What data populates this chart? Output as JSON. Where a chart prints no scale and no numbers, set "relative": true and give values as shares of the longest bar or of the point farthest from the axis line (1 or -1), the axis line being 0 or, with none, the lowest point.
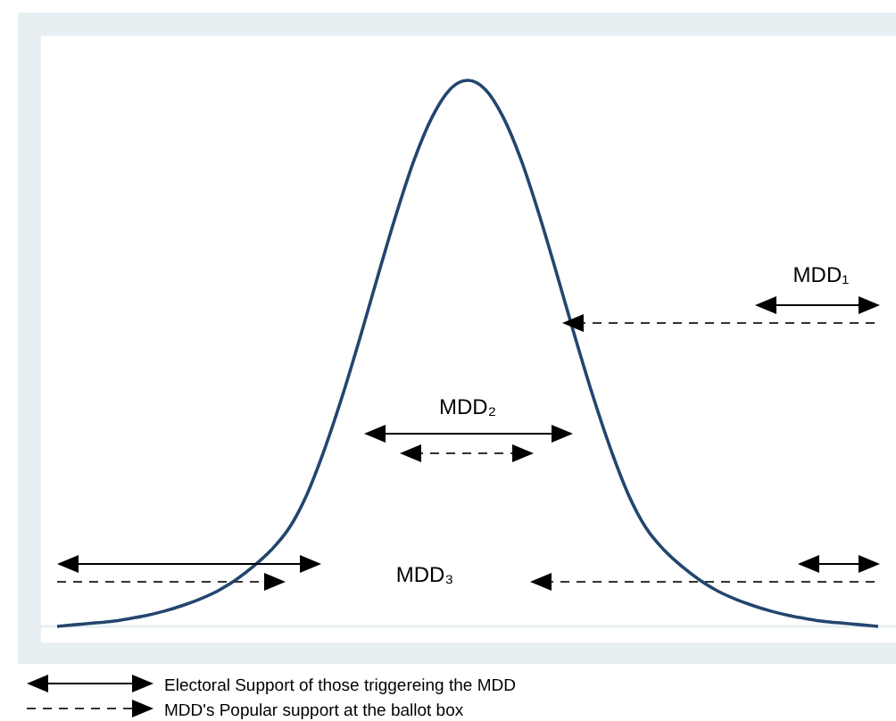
{
  "chart_data": {
    "type": "line",
    "relative": true,
    "categories": [
      null,
      null,
      null,
      null,
      null,
      null,
      null,
      null,
      null,
      null,
      null,
      null,
      null,
      null,
      null,
      null,
      null,
      null,
      null,
      null,
      null,
      null,
      null,
      null,
      null,
      null,
      null,
      null,
      null,
      null,
      null,
      null,
      null,
      null,
      null,
      null,
      null,
      null,
      null,
      null,
      null,
      null,
      null,
      null,
      null,
      null,
      null
    ],
    "series": [
      {
        "color": "#23466e",
        "values": [
          0,
          0.003,
          0.006,
          0.009,
          0.014,
          0.02,
          0.028,
          0.038,
          0.05,
          0.065,
          0.085,
          0.11,
          0.14,
          0.18,
          0.242,
          0.326,
          0.424,
          0.532,
          0.645,
          0.755,
          0.854,
          0.932,
          0.983,
          1,
          0.983,
          0.932,
          0.854,
          0.755,
          0.645,
          0.532,
          0.424,
          0.326,
          0.242,
          0.18,
          0.14,
          0.11,
          0.085,
          0.065,
          0.05,
          0.038,
          0.028,
          0.02,
          0.014,
          0.009,
          0.006,
          0.003,
          0
        ]
      }
    ],
    "marker": "none",
    "line_style": "solid",
    "annotations": [
      "MDD₁",
      "MDD₂",
      "MDD₃",
      "Electoral Support of those triggereing the MDD",
      "MDD's Popular support at the ballot box"
    ]
  }
}
